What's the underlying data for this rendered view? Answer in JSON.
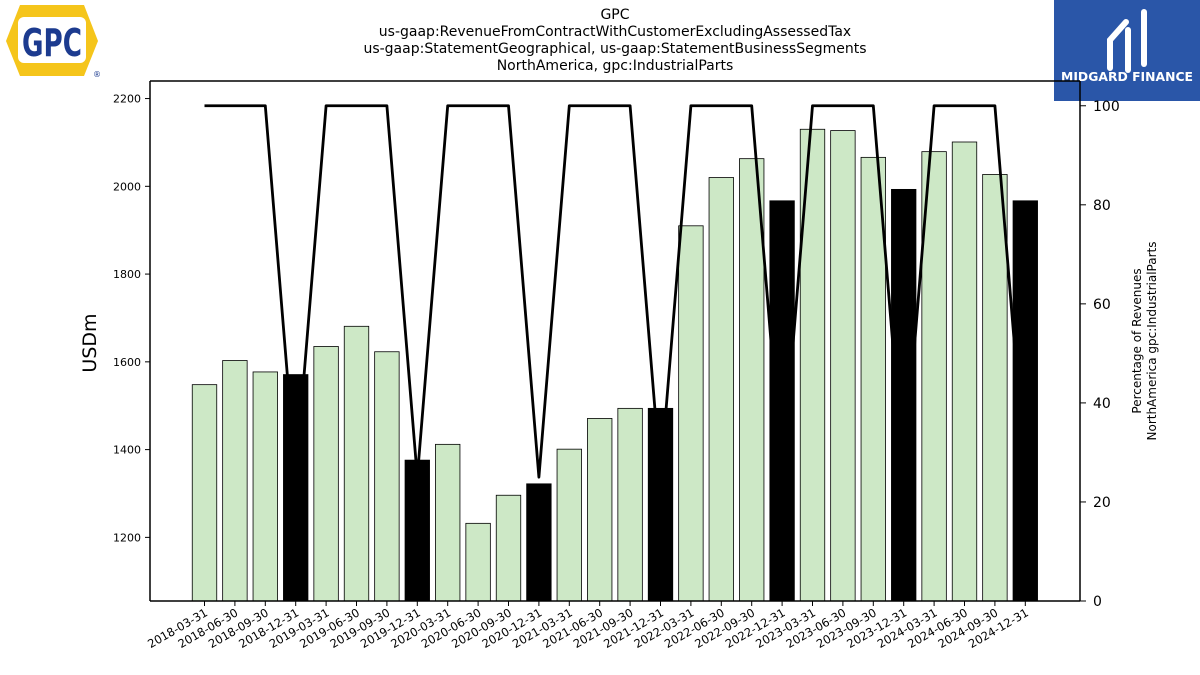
{
  "header": {
    "title_lines": [
      "GPC",
      "us-gaap:RevenueFromContractWithCustomerExcludingAssessedTax",
      "us-gaap:StatementGeographical, us-gaap:StatementBusinessSegments",
      "NorthAmerica, gpc:IndustrialParts"
    ]
  },
  "logos": {
    "gpc_text": "GPC",
    "gpc_registered": "®",
    "midgard_text": "MIDGARD FINANCE"
  },
  "chart_data": {
    "type": "bar",
    "categories": [
      "2018-03-31",
      "2018-06-30",
      "2018-09-30",
      "2018-12-31",
      "2019-03-31",
      "2019-06-30",
      "2019-09-30",
      "2019-12-31",
      "2020-03-31",
      "2020-06-30",
      "2020-09-30",
      "2020-12-31",
      "2021-03-31",
      "2021-06-30",
      "2021-09-30",
      "2021-12-31",
      "2022-03-31",
      "2022-06-30",
      "2022-09-30",
      "2022-12-31",
      "2023-03-31",
      "2023-06-30",
      "2023-09-30",
      "2023-12-31",
      "2024-03-31",
      "2024-06-30",
      "2024-09-30",
      "2024-12-31"
    ],
    "series": [
      {
        "values": [
          1548,
          1603,
          1577,
          1571,
          1635,
          1681,
          1623,
          1376,
          1412,
          1232,
          1296,
          1322,
          1401,
          1471,
          1494,
          1494,
          1910,
          2020,
          2063,
          1967,
          2130,
          2127,
          2066,
          1993,
          2079,
          2101,
          2027,
          1967
        ],
        "highlight": [
          false,
          false,
          false,
          true,
          false,
          false,
          false,
          true,
          false,
          false,
          false,
          true,
          false,
          false,
          false,
          true,
          false,
          false,
          false,
          true,
          false,
          false,
          false,
          true,
          false,
          false,
          false,
          true
        ],
        "color": "#cde8c6",
        "highlight_color": "#000000"
      },
      {
        "axis": "right",
        "type": "line",
        "values": [
          100,
          100,
          100,
          25,
          100,
          100,
          100,
          25,
          100,
          100,
          100,
          25,
          100,
          100,
          100,
          25,
          100,
          100,
          100,
          25,
          100,
          100,
          100,
          25,
          100,
          100,
          100,
          25
        ],
        "color": "#000000"
      }
    ],
    "ylabel": "USDm",
    "y2label_lines": [
      "Percentage of Revenues",
      "NorthAmerica gpc:IndustrialParts"
    ],
    "ylim": [
      1055,
      2240
    ],
    "y2lim": [
      0,
      105
    ],
    "yticks": [
      1200,
      1400,
      1600,
      1800,
      2000,
      2200
    ],
    "y2ticks": [
      0,
      20,
      40,
      60,
      80,
      100
    ],
    "grid": false
  }
}
